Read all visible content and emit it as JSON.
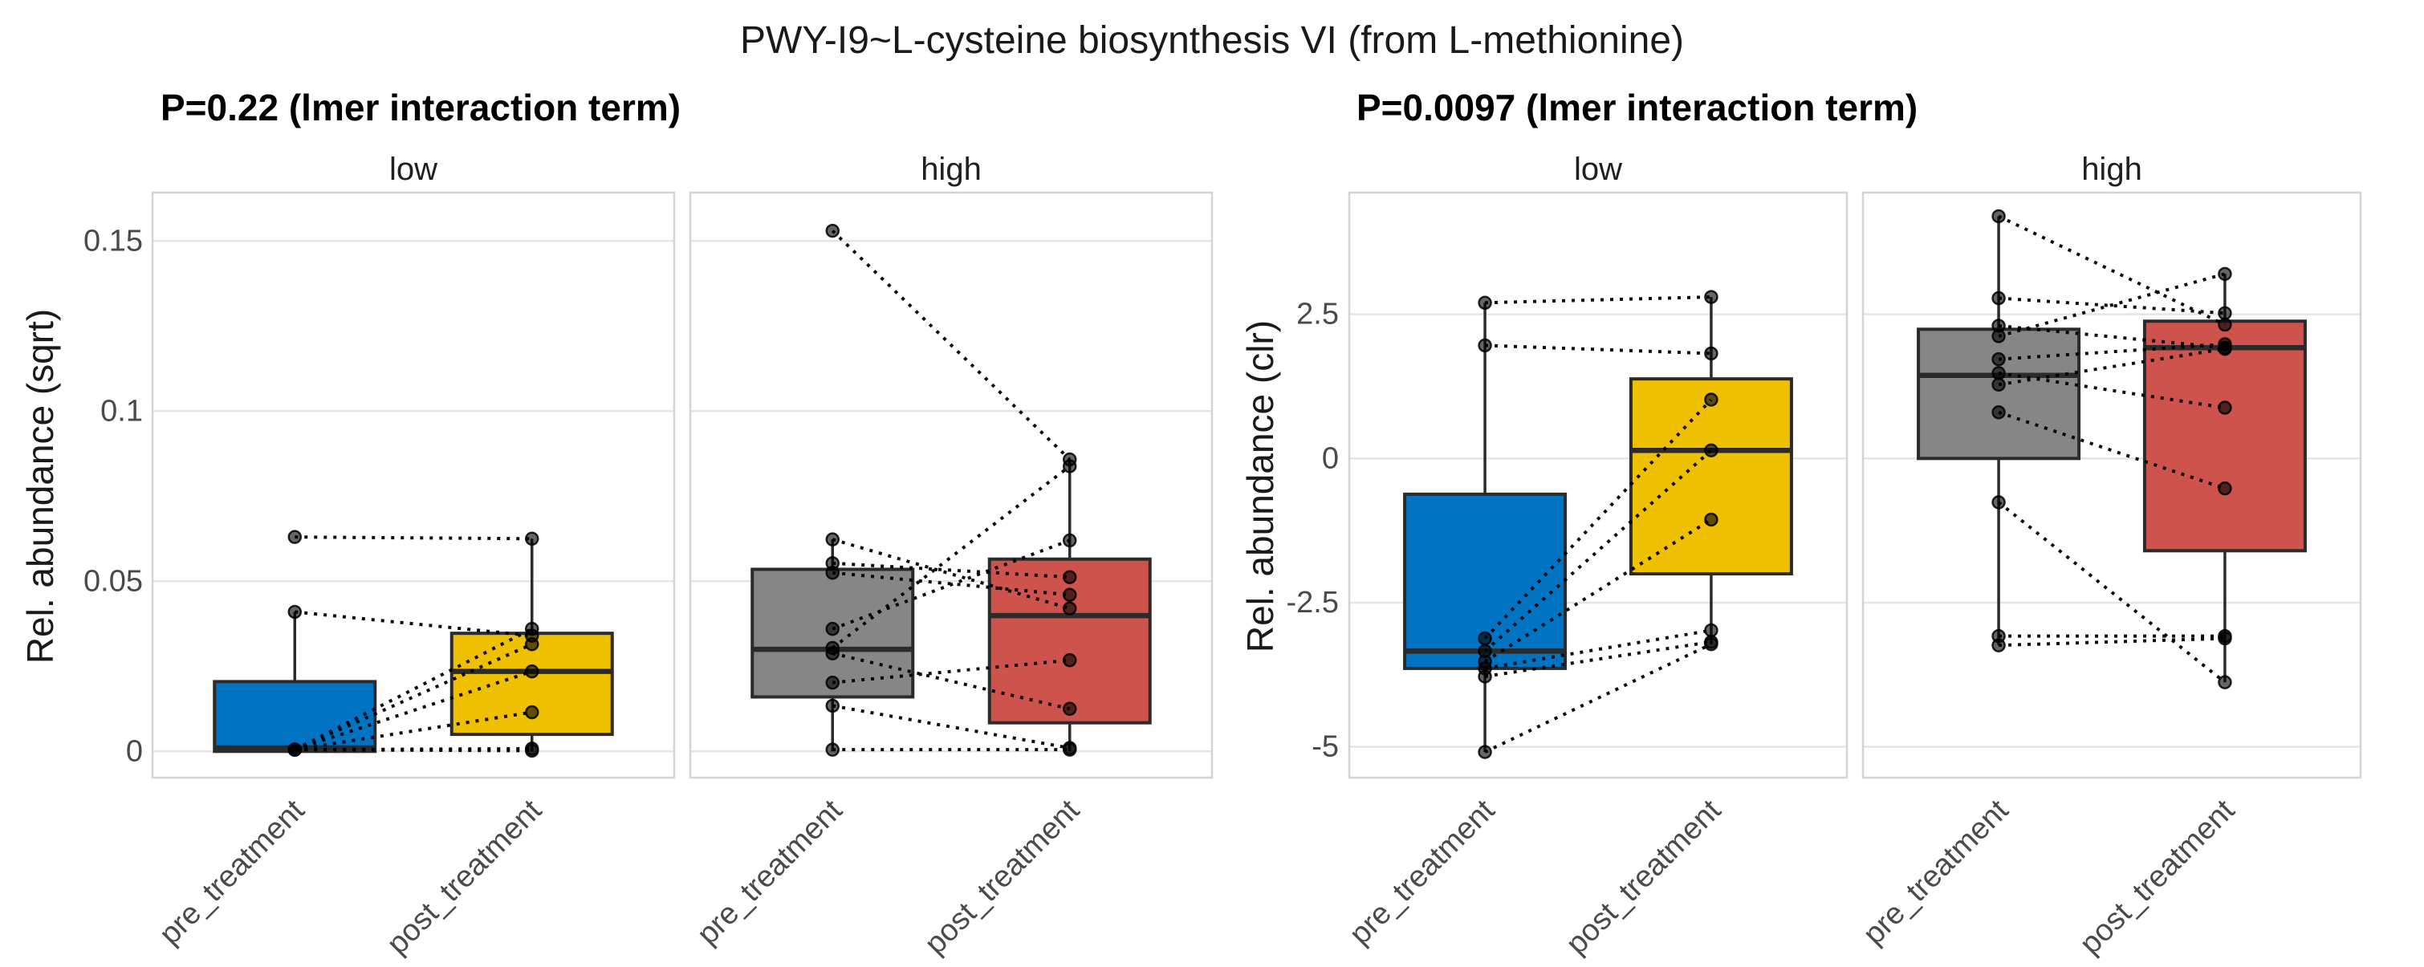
{
  "title": "PWY-I9~L-cysteine biosynthesis VI (from L-methionine)",
  "chart_data": [
    {
      "type": "boxplot",
      "subtitle": "P=0.22 (lmer interaction term)",
      "ylabel": "Rel. abundance (sqrt)",
      "yticks": [
        0,
        0.05,
        0.1,
        0.15
      ],
      "ytick_labels": [
        "0",
        "0.05",
        "0.1",
        "0.15"
      ],
      "ylim": [
        -0.008,
        0.164
      ],
      "grid": "major-horizontal",
      "legend": "none",
      "x_categories": [
        "pre_treatment",
        "post_treatment"
      ],
      "facets": [
        {
          "label": "low",
          "boxes": [
            {
              "group": "pre_treatment",
              "color": "#0073C2",
              "q1": 0.0,
              "median": 0.001,
              "q3": 0.0205,
              "whisker_low": 0.0,
              "whisker_high": 0.041
            },
            {
              "group": "post_treatment",
              "color": "#EFC000",
              "q1": 0.005,
              "median": 0.0235,
              "q3": 0.0347,
              "whisker_low": 0.0,
              "whisker_high": 0.0625
            }
          ],
          "pairs": [
            [
              0.063,
              0.0625
            ],
            [
              0.041,
              0.034
            ],
            [
              0.0005,
              0.036
            ],
            [
              0.0005,
              0.0315
            ],
            [
              0.0005,
              0.0235
            ],
            [
              0.0005,
              0.0115
            ],
            [
              0.0005,
              0.0008
            ],
            [
              0.0005,
              0.0002
            ]
          ]
        },
        {
          "label": "high",
          "boxes": [
            {
              "group": "pre_treatment",
              "color": "#868686",
              "q1": 0.016,
              "median": 0.03,
              "q3": 0.0535,
              "whisker_low": 0.0,
              "whisker_high": 0.0623
            },
            {
              "group": "post_treatment",
              "color": "#CD534C",
              "q1": 0.0084,
              "median": 0.0399,
              "q3": 0.0565,
              "whisker_low": 0.0,
              "whisker_high": 0.0858
            }
          ],
          "pairs": [
            [
              0.153,
              0.0858
            ],
            [
              0.0623,
              0.042
            ],
            [
              0.0553,
              0.0512
            ],
            [
              0.0525,
              0.046
            ],
            [
              0.036,
              0.062
            ],
            [
              0.0304,
              0.0838
            ],
            [
              0.0288,
              0.0125
            ],
            [
              0.0202,
              0.0268
            ],
            [
              0.0134,
              0.001
            ],
            [
              0.0005,
              0.0005
            ]
          ]
        }
      ]
    },
    {
      "type": "boxplot",
      "subtitle": "P=0.0097 (lmer interaction term)",
      "ylabel": "Rel. abundance (clr)",
      "yticks": [
        2.5,
        0,
        -2.5,
        -5
      ],
      "ytick_labels": [
        "2.5",
        "0",
        "-2.5",
        "-5"
      ],
      "ylim": [
        -5.6,
        4.6
      ],
      "grid": "major-horizontal",
      "legend": "none",
      "x_categories": [
        "pre_treatment",
        "post_treatment"
      ],
      "facets": [
        {
          "label": "low",
          "boxes": [
            {
              "group": "pre_treatment",
              "color": "#0073C2",
              "q1": -3.64,
              "median": -3.34,
              "q3": -0.62,
              "whisker_low": -5.09,
              "whisker_high": 2.7
            },
            {
              "group": "post_treatment",
              "color": "#EFC000",
              "q1": -2.0,
              "median": 0.14,
              "q3": 1.38,
              "whisker_low": -3.22,
              "whisker_high": 2.8
            }
          ],
          "pairs": [
            [
              2.7,
              2.8
            ],
            [
              1.96,
              1.82
            ],
            [
              -3.12,
              1.02
            ],
            [
              -3.34,
              0.14
            ],
            [
              -3.52,
              -1.06
            ],
            [
              -3.64,
              -2.98
            ],
            [
              -3.78,
              -3.18
            ],
            [
              -5.09,
              -3.22
            ]
          ]
        },
        {
          "label": "high",
          "boxes": [
            {
              "group": "pre_treatment",
              "color": "#868686",
              "q1": 0.0,
              "median": 1.44,
              "q3": 2.24,
              "whisker_low": -3.24,
              "whisker_high": 4.2
            },
            {
              "group": "post_treatment",
              "color": "#CD534C",
              "q1": -1.6,
              "median": 1.92,
              "q3": 2.38,
              "whisker_low": -3.88,
              "whisker_high": 3.2
            }
          ],
          "pairs": [
            [
              4.2,
              2.32
            ],
            [
              2.78,
              2.52
            ],
            [
              2.3,
              1.92
            ],
            [
              2.12,
              3.2
            ],
            [
              1.72,
              1.98
            ],
            [
              1.48,
              0.88
            ],
            [
              1.28,
              1.9
            ],
            [
              0.8,
              -0.52
            ],
            [
              -0.76,
              -3.88
            ],
            [
              -3.08,
              -3.08
            ],
            [
              -3.24,
              -3.12
            ]
          ]
        }
      ]
    }
  ],
  "style_colors": {
    "box_border": "#2b2b2b",
    "gridline": "#e4e4e4",
    "panel_border": "#d4d4d4",
    "point": "#000000",
    "pair_line": "#000000"
  }
}
